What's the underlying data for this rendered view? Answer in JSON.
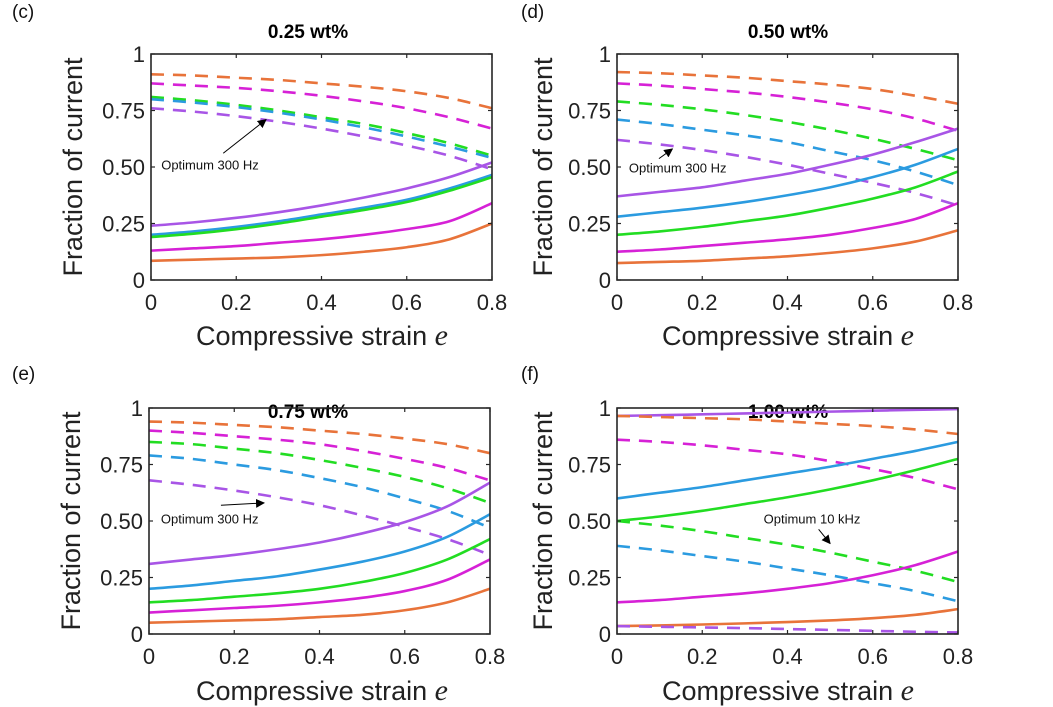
{
  "figure": {
    "colors": {
      "orange": "#E8733A",
      "magenta": "#D621D6",
      "green": "#22DD22",
      "blue": "#2B9BE0",
      "purple": "#A855E6",
      "text": "#222222",
      "axes": "#262626"
    }
  },
  "chart_data": [
    {
      "type": "line",
      "panel_label": "(c)",
      "title": "0.25 wt%",
      "xlabel": "Compressive strain",
      "xlabel_var": "e",
      "ylabel": "Fraction of current",
      "xlim": [
        0,
        0.8
      ],
      "ylim": [
        0,
        1
      ],
      "xticks": [
        "0",
        "0.2",
        "0.4",
        "0.6",
        "0.8"
      ],
      "yticks": [
        "0",
        "0.25",
        "0.50",
        "0.75",
        "1"
      ],
      "grid": false,
      "annotation": {
        "text": "Optimum 300 Hz",
        "x": 0.03,
        "y": 0.49,
        "arrow_to": [
          0.27,
          0.71
        ]
      },
      "x": [
        0,
        0.1,
        0.2,
        0.3,
        0.4,
        0.5,
        0.6,
        0.7,
        0.8
      ],
      "series": [
        {
          "color": "orange",
          "style": "dashed",
          "values": [
            0.91,
            0.905,
            0.895,
            0.885,
            0.87,
            0.855,
            0.835,
            0.805,
            0.76
          ]
        },
        {
          "color": "magenta",
          "style": "dashed",
          "values": [
            0.87,
            0.86,
            0.85,
            0.835,
            0.815,
            0.79,
            0.76,
            0.72,
            0.67
          ]
        },
        {
          "color": "green",
          "style": "dashed",
          "values": [
            0.81,
            0.795,
            0.775,
            0.75,
            0.72,
            0.69,
            0.65,
            0.605,
            0.55
          ]
        },
        {
          "color": "blue",
          "style": "dashed",
          "values": [
            0.8,
            0.785,
            0.765,
            0.74,
            0.71,
            0.675,
            0.635,
            0.59,
            0.54
          ]
        },
        {
          "color": "purple",
          "style": "dashed",
          "values": [
            0.76,
            0.745,
            0.725,
            0.7,
            0.67,
            0.635,
            0.595,
            0.55,
            0.49
          ]
        },
        {
          "color": "purple",
          "style": "solid",
          "values": [
            0.24,
            0.255,
            0.275,
            0.3,
            0.33,
            0.365,
            0.405,
            0.455,
            0.52
          ]
        },
        {
          "color": "blue",
          "style": "solid",
          "values": [
            0.2,
            0.215,
            0.235,
            0.26,
            0.29,
            0.32,
            0.355,
            0.405,
            0.465
          ]
        },
        {
          "color": "green",
          "style": "solid",
          "values": [
            0.19,
            0.205,
            0.225,
            0.25,
            0.28,
            0.31,
            0.345,
            0.395,
            0.455
          ]
        },
        {
          "color": "magenta",
          "style": "solid",
          "values": [
            0.13,
            0.14,
            0.15,
            0.165,
            0.18,
            0.2,
            0.225,
            0.26,
            0.34
          ]
        },
        {
          "color": "orange",
          "style": "solid",
          "values": [
            0.085,
            0.09,
            0.095,
            0.1,
            0.11,
            0.125,
            0.145,
            0.18,
            0.25
          ]
        }
      ]
    },
    {
      "type": "line",
      "panel_label": "(d)",
      "title": "0.50 wt%",
      "xlabel": "Compressive strain",
      "xlabel_var": "e",
      "ylabel": "Fraction of current",
      "xlim": [
        0,
        0.8
      ],
      "ylim": [
        0,
        1
      ],
      "xticks": [
        "0",
        "0.2",
        "0.4",
        "0.6",
        "0.8"
      ],
      "yticks": [
        "0",
        "0.25",
        "0.50",
        "0.75",
        "1"
      ],
      "grid": false,
      "annotation": {
        "text": "Optimum 300 Hz",
        "x": 0.035,
        "y": 0.475,
        "arrow_to": [
          0.13,
          0.58
        ]
      },
      "x": [
        0,
        0.1,
        0.2,
        0.3,
        0.4,
        0.5,
        0.6,
        0.7,
        0.8
      ],
      "series": [
        {
          "color": "orange",
          "style": "dashed",
          "values": [
            0.92,
            0.915,
            0.905,
            0.895,
            0.88,
            0.865,
            0.845,
            0.815,
            0.78
          ]
        },
        {
          "color": "magenta",
          "style": "dashed",
          "values": [
            0.87,
            0.86,
            0.845,
            0.83,
            0.81,
            0.785,
            0.755,
            0.715,
            0.66
          ]
        },
        {
          "color": "green",
          "style": "dashed",
          "values": [
            0.79,
            0.775,
            0.755,
            0.73,
            0.7,
            0.665,
            0.625,
            0.58,
            0.53
          ]
        },
        {
          "color": "blue",
          "style": "dashed",
          "values": [
            0.71,
            0.69,
            0.665,
            0.64,
            0.61,
            0.57,
            0.53,
            0.48,
            0.42
          ]
        },
        {
          "color": "purple",
          "style": "dashed",
          "values": [
            0.62,
            0.6,
            0.575,
            0.545,
            0.51,
            0.47,
            0.43,
            0.385,
            0.33
          ]
        },
        {
          "color": "purple",
          "style": "solid",
          "values": [
            0.37,
            0.39,
            0.41,
            0.44,
            0.47,
            0.51,
            0.555,
            0.61,
            0.67
          ]
        },
        {
          "color": "blue",
          "style": "solid",
          "values": [
            0.28,
            0.3,
            0.32,
            0.345,
            0.375,
            0.41,
            0.455,
            0.51,
            0.58
          ]
        },
        {
          "color": "green",
          "style": "solid",
          "values": [
            0.2,
            0.215,
            0.235,
            0.26,
            0.285,
            0.32,
            0.36,
            0.41,
            0.48
          ]
        },
        {
          "color": "magenta",
          "style": "solid",
          "values": [
            0.125,
            0.135,
            0.15,
            0.165,
            0.18,
            0.2,
            0.23,
            0.27,
            0.34
          ]
        },
        {
          "color": "orange",
          "style": "solid",
          "values": [
            0.075,
            0.08,
            0.085,
            0.095,
            0.105,
            0.12,
            0.14,
            0.17,
            0.22
          ]
        }
      ]
    },
    {
      "type": "line",
      "panel_label": "(e)",
      "title": "0.75 wt%",
      "xlabel": "Compressive strain",
      "xlabel_var": "e",
      "ylabel": "Fraction of current",
      "xlim": [
        0,
        0.8
      ],
      "ylim": [
        0,
        1
      ],
      "xticks": [
        "0",
        "0.2",
        "0.4",
        "0.6",
        "0.8"
      ],
      "yticks": [
        "0",
        "0.25",
        "0.50",
        "0.75",
        "1"
      ],
      "grid": false,
      "annotation": {
        "text": "Optimum 300 Hz",
        "x": 0.035,
        "y": 0.49,
        "arrow_to": [
          0.27,
          0.58
        ]
      },
      "x": [
        0,
        0.1,
        0.2,
        0.3,
        0.4,
        0.5,
        0.6,
        0.7,
        0.8
      ],
      "series": [
        {
          "color": "orange",
          "style": "dashed",
          "values": [
            0.94,
            0.935,
            0.925,
            0.915,
            0.9,
            0.885,
            0.865,
            0.84,
            0.8
          ]
        },
        {
          "color": "magenta",
          "style": "dashed",
          "values": [
            0.9,
            0.89,
            0.875,
            0.86,
            0.84,
            0.81,
            0.775,
            0.735,
            0.68
          ]
        },
        {
          "color": "green",
          "style": "dashed",
          "values": [
            0.85,
            0.84,
            0.82,
            0.8,
            0.77,
            0.735,
            0.695,
            0.645,
            0.58
          ]
        },
        {
          "color": "blue",
          "style": "dashed",
          "values": [
            0.79,
            0.775,
            0.75,
            0.725,
            0.69,
            0.65,
            0.6,
            0.545,
            0.47
          ]
        },
        {
          "color": "purple",
          "style": "dashed",
          "values": [
            0.68,
            0.66,
            0.635,
            0.605,
            0.57,
            0.525,
            0.475,
            0.42,
            0.35
          ]
        },
        {
          "color": "purple",
          "style": "solid",
          "values": [
            0.31,
            0.33,
            0.35,
            0.375,
            0.405,
            0.445,
            0.495,
            0.565,
            0.67
          ]
        },
        {
          "color": "blue",
          "style": "solid",
          "values": [
            0.2,
            0.215,
            0.235,
            0.255,
            0.285,
            0.32,
            0.365,
            0.43,
            0.53
          ]
        },
        {
          "color": "green",
          "style": "solid",
          "values": [
            0.14,
            0.15,
            0.165,
            0.18,
            0.2,
            0.23,
            0.27,
            0.33,
            0.42
          ]
        },
        {
          "color": "magenta",
          "style": "solid",
          "values": [
            0.095,
            0.105,
            0.115,
            0.125,
            0.14,
            0.16,
            0.19,
            0.24,
            0.33
          ]
        },
        {
          "color": "orange",
          "style": "solid",
          "values": [
            0.05,
            0.055,
            0.06,
            0.065,
            0.075,
            0.085,
            0.105,
            0.14,
            0.2
          ]
        }
      ]
    },
    {
      "type": "line",
      "panel_label": "(f)",
      "title": "1.00 wt%",
      "xlabel": "Compressive strain",
      "xlabel_var": "e",
      "ylabel": "Fraction of current",
      "xlim": [
        0,
        0.8
      ],
      "ylim": [
        0,
        1
      ],
      "xticks": [
        "0",
        "0.2",
        "0.4",
        "0.6",
        "0.8"
      ],
      "yticks": [
        "0",
        "0.25",
        "0.50",
        "0.75",
        "1"
      ],
      "grid": false,
      "annotation": {
        "text": "Optimum 10 kHz",
        "x": 0.43,
        "y": 0.49,
        "arrow_to": [
          0.5,
          0.4
        ]
      },
      "x": [
        0,
        0.1,
        0.2,
        0.3,
        0.4,
        0.5,
        0.6,
        0.7,
        0.8
      ],
      "series": [
        {
          "color": "purple",
          "style": "solid",
          "values": [
            0.965,
            0.968,
            0.972,
            0.976,
            0.98,
            0.984,
            0.988,
            0.992,
            0.995
          ]
        },
        {
          "color": "orange",
          "style": "dashed",
          "values": [
            0.965,
            0.96,
            0.955,
            0.95,
            0.94,
            0.93,
            0.92,
            0.905,
            0.885
          ]
        },
        {
          "color": "magenta",
          "style": "dashed",
          "values": [
            0.86,
            0.85,
            0.835,
            0.815,
            0.795,
            0.765,
            0.73,
            0.69,
            0.64
          ]
        },
        {
          "color": "blue",
          "style": "solid",
          "values": [
            0.6,
            0.625,
            0.65,
            0.68,
            0.71,
            0.74,
            0.775,
            0.81,
            0.85
          ]
        },
        {
          "color": "green",
          "style": "solid",
          "values": [
            0.5,
            0.52,
            0.545,
            0.575,
            0.605,
            0.64,
            0.68,
            0.725,
            0.775
          ]
        },
        {
          "color": "green",
          "style": "dashed",
          "values": [
            0.5,
            0.48,
            0.455,
            0.425,
            0.395,
            0.36,
            0.32,
            0.28,
            0.23
          ]
        },
        {
          "color": "blue",
          "style": "dashed",
          "values": [
            0.39,
            0.37,
            0.345,
            0.32,
            0.29,
            0.26,
            0.225,
            0.19,
            0.145
          ]
        },
        {
          "color": "magenta",
          "style": "solid",
          "values": [
            0.14,
            0.15,
            0.165,
            0.18,
            0.2,
            0.225,
            0.26,
            0.305,
            0.365
          ]
        },
        {
          "color": "orange",
          "style": "solid",
          "values": [
            0.035,
            0.038,
            0.042,
            0.047,
            0.053,
            0.06,
            0.07,
            0.085,
            0.11
          ]
        },
        {
          "color": "purple",
          "style": "dashed",
          "values": [
            0.035,
            0.032,
            0.029,
            0.026,
            0.022,
            0.018,
            0.014,
            0.01,
            0.007
          ]
        }
      ]
    }
  ]
}
